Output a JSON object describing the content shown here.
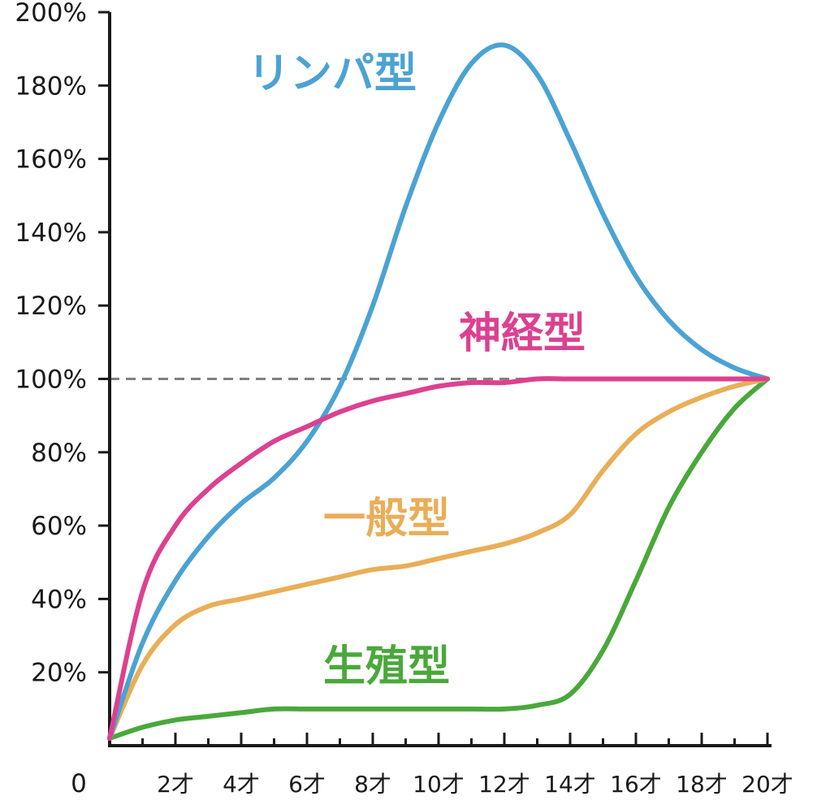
{
  "chart_data": {
    "type": "line",
    "title": "",
    "xlabel": "",
    "ylabel": "",
    "x_origin_label": "0",
    "xlim": [
      0,
      20
    ],
    "ylim": [
      0,
      200
    ],
    "y_ticks": [
      {
        "value": 20,
        "label": "20%"
      },
      {
        "value": 40,
        "label": "40%"
      },
      {
        "value": 60,
        "label": "60%"
      },
      {
        "value": 80,
        "label": "80%"
      },
      {
        "value": 100,
        "label": "100%"
      },
      {
        "value": 120,
        "label": "120%"
      },
      {
        "value": 140,
        "label": "140%"
      },
      {
        "value": 160,
        "label": "160%"
      },
      {
        "value": 180,
        "label": "180%"
      },
      {
        "value": 200,
        "label": "200%"
      }
    ],
    "x_ticks": [
      {
        "value": 2,
        "label": "2才"
      },
      {
        "value": 4,
        "label": "4才"
      },
      {
        "value": 6,
        "label": "6才"
      },
      {
        "value": 8,
        "label": "8才"
      },
      {
        "value": 10,
        "label": "10才"
      },
      {
        "value": 12,
        "label": "12才"
      },
      {
        "value": 14,
        "label": "14才"
      },
      {
        "value": 16,
        "label": "16才"
      },
      {
        "value": 18,
        "label": "18才"
      },
      {
        "value": 20,
        "label": "20才"
      }
    ],
    "reference_line": 100,
    "grid": false,
    "series": [
      {
        "name": "リンパ型",
        "color": "#4ba3d3",
        "x": [
          0,
          1,
          2,
          3,
          4,
          5,
          6,
          7,
          8,
          9,
          10,
          11,
          12,
          13,
          14,
          15,
          16,
          17,
          18,
          19,
          20
        ],
        "y": [
          2,
          28,
          45,
          57,
          66,
          73,
          83,
          98,
          120,
          147,
          170,
          186,
          191,
          183,
          165,
          145,
          128,
          116,
          108,
          103,
          100
        ]
      },
      {
        "name": "神経型",
        "color": "#dc4190",
        "x": [
          0,
          1,
          2,
          3,
          4,
          5,
          6,
          7,
          8,
          9,
          10,
          11,
          12,
          13,
          14,
          15,
          16,
          17,
          18,
          19,
          20
        ],
        "y": [
          2,
          42,
          60,
          70,
          77,
          83,
          87,
          91,
          94,
          96,
          98,
          99,
          99,
          100,
          100,
          100,
          100,
          100,
          100,
          100,
          100
        ]
      },
      {
        "name": "一般型",
        "color": "#e9ae58",
        "x": [
          0,
          1,
          2,
          3,
          4,
          5,
          6,
          7,
          8,
          9,
          10,
          11,
          12,
          13,
          14,
          15,
          16,
          17,
          18,
          19,
          20
        ],
        "y": [
          2,
          22,
          33,
          38,
          40,
          42,
          44,
          46,
          48,
          49,
          51,
          53,
          55,
          58,
          63,
          75,
          85,
          91,
          95,
          98,
          100
        ]
      },
      {
        "name": "生殖型",
        "color": "#4aa83a",
        "x": [
          0,
          1,
          2,
          3,
          4,
          5,
          6,
          7,
          8,
          9,
          10,
          11,
          12,
          13,
          14,
          15,
          16,
          17,
          18,
          19,
          20
        ],
        "y": [
          2,
          5,
          7,
          8,
          9,
          10,
          10,
          10,
          10,
          10,
          10,
          10,
          10,
          11,
          14,
          26,
          45,
          65,
          80,
          92,
          100
        ]
      }
    ]
  }
}
